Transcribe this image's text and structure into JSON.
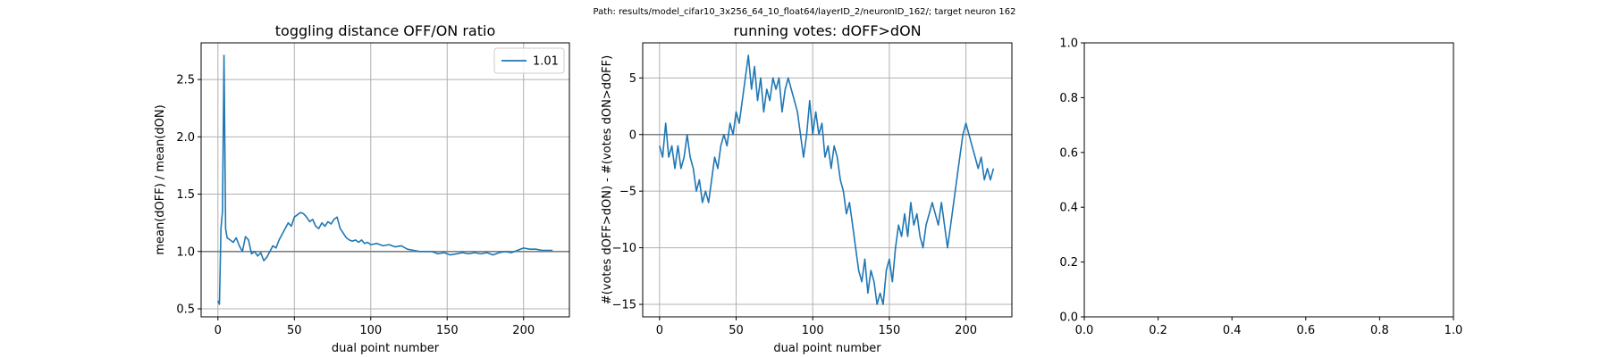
{
  "suptitle": "Path: results/model_cifar10_3x256_64_10_float64/layerID_2/neuronID_162/; target neuron 162",
  "chart_data": [
    {
      "type": "line",
      "title": "toggling distance OFF/ON ratio",
      "xlabel": "dual point number",
      "ylabel": "mean(dOFF) / mean(dON)",
      "xlim": [
        -11,
        230
      ],
      "ylim": [
        0.43,
        2.82
      ],
      "xticks": [
        0,
        50,
        100,
        150,
        200
      ],
      "yticks": [
        0.5,
        1.0,
        1.5,
        2.0,
        2.5
      ],
      "xtick_labels": [
        "0",
        "50",
        "100",
        "150",
        "200"
      ],
      "ytick_labels": [
        "0.5",
        "1.0",
        "1.5",
        "2.0",
        "2.5"
      ],
      "grid": true,
      "legend": {
        "position": "upper right",
        "entries": [
          "1.01"
        ]
      },
      "reference_line": 1.0,
      "series": [
        {
          "name": "1.01",
          "x": [
            0,
            1,
            2,
            3,
            4,
            5,
            6,
            8,
            10,
            12,
            14,
            16,
            18,
            20,
            22,
            24,
            26,
            28,
            30,
            32,
            34,
            36,
            38,
            40,
            42,
            44,
            46,
            48,
            50,
            52,
            54,
            56,
            58,
            60,
            62,
            64,
            66,
            68,
            70,
            72,
            74,
            76,
            78,
            80,
            82,
            84,
            86,
            88,
            90,
            92,
            94,
            96,
            98,
            100,
            104,
            108,
            112,
            116,
            120,
            124,
            128,
            132,
            136,
            140,
            144,
            148,
            152,
            156,
            160,
            164,
            168,
            172,
            176,
            180,
            184,
            188,
            192,
            196,
            200,
            204,
            208,
            212,
            216,
            219
          ],
          "y": [
            0.57,
            0.54,
            1.2,
            1.35,
            2.71,
            1.2,
            1.12,
            1.1,
            1.08,
            1.12,
            1.05,
            1.0,
            1.13,
            1.1,
            0.98,
            1.0,
            0.96,
            0.99,
            0.92,
            0.95,
            1.0,
            1.05,
            1.03,
            1.1,
            1.15,
            1.2,
            1.25,
            1.22,
            1.3,
            1.32,
            1.34,
            1.33,
            1.3,
            1.26,
            1.28,
            1.22,
            1.2,
            1.25,
            1.22,
            1.26,
            1.24,
            1.28,
            1.3,
            1.2,
            1.16,
            1.12,
            1.1,
            1.09,
            1.1,
            1.08,
            1.1,
            1.07,
            1.08,
            1.06,
            1.07,
            1.05,
            1.06,
            1.04,
            1.05,
            1.02,
            1.01,
            1.0,
            1.0,
            1.0,
            0.98,
            0.99,
            0.97,
            0.98,
            0.99,
            0.98,
            0.99,
            0.98,
            0.99,
            0.97,
            0.99,
            1.0,
            0.99,
            1.01,
            1.03,
            1.02,
            1.02,
            1.01,
            1.01,
            1.01
          ]
        }
      ]
    },
    {
      "type": "line",
      "title": "running votes: dOFF>dON",
      "xlabel": "dual point number",
      "ylabel": "#(votes dOFF>dON) - #(votes dON>dOFF)",
      "xlim": [
        -11,
        230
      ],
      "ylim": [
        -16.1,
        8.1
      ],
      "xticks": [
        0,
        50,
        100,
        150,
        200
      ],
      "yticks": [
        5,
        0,
        -5,
        -10,
        -15
      ],
      "xtick_labels": [
        "0",
        "50",
        "100",
        "150",
        "200"
      ],
      "ytick_labels": [
        "5",
        "0",
        "−5",
        "−10",
        "−15"
      ],
      "grid": true,
      "reference_line": 0,
      "series": [
        {
          "name": "",
          "x": [
            0,
            2,
            4,
            6,
            8,
            10,
            12,
            14,
            16,
            18,
            20,
            22,
            24,
            26,
            28,
            30,
            32,
            34,
            36,
            38,
            40,
            42,
            44,
            46,
            48,
            50,
            52,
            54,
            56,
            58,
            60,
            62,
            64,
            66,
            68,
            70,
            72,
            74,
            76,
            78,
            80,
            82,
            84,
            86,
            88,
            90,
            92,
            94,
            96,
            98,
            100,
            102,
            104,
            106,
            108,
            110,
            112,
            114,
            116,
            118,
            120,
            122,
            124,
            126,
            128,
            130,
            132,
            134,
            136,
            138,
            140,
            142,
            144,
            146,
            148,
            150,
            152,
            154,
            156,
            158,
            160,
            162,
            164,
            166,
            168,
            170,
            172,
            174,
            176,
            178,
            180,
            182,
            184,
            186,
            188,
            190,
            192,
            194,
            196,
            198,
            200,
            202,
            204,
            206,
            208,
            210,
            212,
            214,
            216,
            218
          ],
          "y": [
            -1,
            -2,
            1,
            -2,
            -1,
            -3,
            -1,
            -3,
            -2,
            0,
            -2,
            -3,
            -5,
            -4,
            -6,
            -5,
            -6,
            -4,
            -2,
            -3,
            -1,
            0,
            -1,
            1,
            0,
            2,
            1,
            3,
            5,
            7,
            4,
            6,
            3,
            5,
            2,
            4,
            3,
            5,
            4,
            5,
            2,
            4,
            5,
            4,
            3,
            2,
            0,
            -2,
            0,
            3,
            0,
            2,
            0,
            1,
            -2,
            -1,
            -3,
            -1,
            -2,
            -4,
            -5,
            -7,
            -6,
            -8,
            -10,
            -12,
            -13,
            -11,
            -14,
            -12,
            -13,
            -15,
            -14,
            -15,
            -12,
            -11,
            -13,
            -10,
            -8,
            -9,
            -7,
            -9,
            -6,
            -8,
            -7,
            -9,
            -10,
            -8,
            -7,
            -6,
            -7,
            -8,
            -6,
            -8,
            -10,
            -8,
            -6,
            -4,
            -2,
            0,
            1,
            0,
            -1,
            -2,
            -3,
            -2,
            -4,
            -3,
            -4,
            -3
          ]
        }
      ]
    },
    {
      "type": "line",
      "title": "",
      "xlim": [
        0,
        1
      ],
      "ylim": [
        0,
        1
      ],
      "xticks": [
        0,
        0.2,
        0.4,
        0.6,
        0.8,
        1.0
      ],
      "yticks": [
        0,
        0.2,
        0.4,
        0.6,
        0.8,
        1.0
      ],
      "xtick_labels": [
        "0.0",
        "0.2",
        "0.4",
        "0.6",
        "0.8",
        "1.0"
      ],
      "ytick_labels": [
        "0.0",
        "0.2",
        "0.4",
        "0.6",
        "0.8",
        "1.0"
      ],
      "grid": false,
      "series": []
    }
  ],
  "colors": {
    "line": "#1f77b4",
    "reference": "#808080",
    "grid": "#b0b0b0",
    "axes": "#000000"
  }
}
